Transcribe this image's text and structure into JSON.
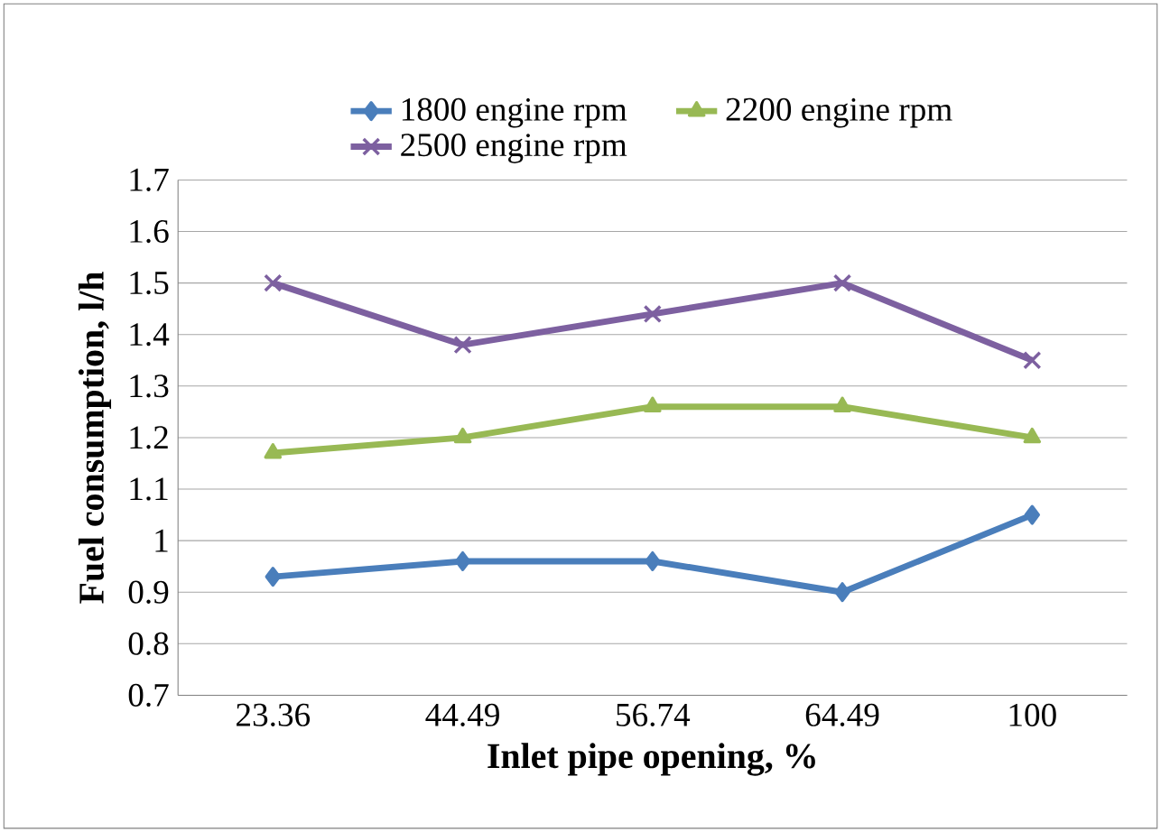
{
  "chart_data": {
    "type": "line",
    "xlabel": "Inlet pipe opening, %",
    "ylabel": "Fuel consumption, l/h",
    "categories": [
      "23.36",
      "44.49",
      "56.74",
      "64.49",
      "100"
    ],
    "series": [
      {
        "name": "1800 engine rpm",
        "color": "#4a7ebb",
        "marker": "diamond",
        "values": [
          0.93,
          0.96,
          0.96,
          0.9,
          1.05
        ]
      },
      {
        "name": "2200 engine rpm",
        "color": "#98b954",
        "marker": "triangle",
        "values": [
          1.17,
          1.2,
          1.26,
          1.26,
          1.2
        ]
      },
      {
        "name": "2500 engine rpm",
        "color": "#7d60a0",
        "marker": "cross",
        "values": [
          1.5,
          1.38,
          1.44,
          1.5,
          1.35
        ]
      }
    ],
    "ylim": [
      0.7,
      1.7
    ],
    "yticks": [
      0.7,
      0.8,
      0.9,
      1,
      1.1,
      1.2,
      1.3,
      1.4,
      1.5,
      1.6,
      1.7
    ],
    "grid": "y",
    "legend": "top"
  }
}
